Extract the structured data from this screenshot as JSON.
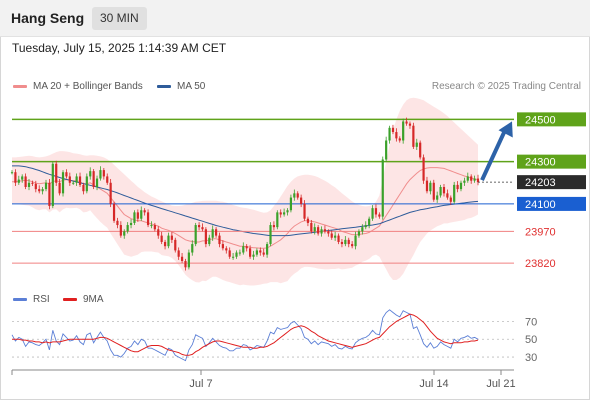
{
  "header": {
    "title": "Hang Seng",
    "timeframe": "30 MIN"
  },
  "datetime": "Tuesday, July 15, 2025 1:14:39 AM CET",
  "legend": {
    "ma20": {
      "label": "MA 20 + Bollinger Bands",
      "color": "#f08d8d"
    },
    "ma50": {
      "label": "MA 50",
      "color": "#2e5c9a"
    }
  },
  "credit": "Research © 2025 Trading Central",
  "rsi_legend": {
    "rsi": {
      "label": "RSI",
      "color": "#5b7fd6"
    },
    "ma9": {
      "label": "9MA",
      "color": "#e02020"
    }
  },
  "chart_data": [
    {
      "type": "candlestick",
      "x_labels": [
        "Jul 7",
        "Jul 14",
        "Jul 21"
      ],
      "ylim": [
        23740,
        24620
      ],
      "current_price": 24203,
      "current_price_label": "24203",
      "levels": [
        {
          "label": "24500",
          "value": 24500,
          "kind": "resistance"
        },
        {
          "label": "24300",
          "value": 24300,
          "kind": "resistance"
        },
        {
          "label": "24100",
          "value": 24100,
          "kind": "pivot"
        },
        {
          "label": "23970",
          "value": 23970,
          "kind": "support"
        },
        {
          "label": "23820",
          "value": 23820,
          "kind": "support"
        }
      ],
      "forecast_arrow": {
        "from": 24203,
        "to": 24500
      },
      "closes": [
        24250,
        24200,
        24215,
        24230,
        24180,
        24200,
        24195,
        24170,
        24160,
        24170,
        24200,
        24090,
        24290,
        24200,
        24150,
        24250,
        24230,
        24200,
        24200,
        24230,
        24190,
        24160,
        24230,
        24255,
        24180,
        24220,
        24260,
        24230,
        24200,
        24100,
        24020,
        24000,
        23950,
        23970,
        24000,
        24010,
        24060,
        24030,
        24070,
        24060,
        24000,
        24000,
        23980,
        23950,
        23920,
        23900,
        23950,
        23930,
        23880,
        23850,
        23830,
        23800,
        23870,
        23910,
        24000,
        23990,
        23980,
        23910,
        23940,
        23980,
        23950,
        23910,
        23890,
        23880,
        23850,
        23850,
        23870,
        23870,
        23900,
        23890,
        23850,
        23860,
        23880,
        23870,
        23860,
        23910,
        24000,
        23990,
        24060,
        24050,
        24060,
        24070,
        24130,
        24150,
        24130,
        24100,
        24030,
        24010,
        23970,
        23990,
        23960,
        23980,
        23970,
        23960,
        23940,
        23950,
        23920,
        23910,
        23930,
        23910,
        23900,
        23950,
        23970,
        23990,
        24000,
        24030,
        24080,
        24050,
        24040,
        24310,
        24400,
        24460,
        24440,
        24410,
        24400,
        24490,
        24480,
        24470,
        24370,
        24390,
        24320,
        24210,
        24160,
        24200,
        24120,
        24140,
        24180,
        24150,
        24130,
        24110,
        24190,
        24170,
        24200,
        24210,
        24230,
        24210,
        24220,
        24203
      ],
      "ma20": [
        24205,
        24205,
        24207,
        24210,
        24212,
        24210,
        24205,
        24198,
        24195,
        24198,
        24200,
        24195,
        24205,
        24210,
        24205,
        24212,
        24215,
        24212,
        24210,
        24210,
        24205,
        24195,
        24195,
        24200,
        24190,
        24180,
        24170,
        24160,
        24150,
        24130,
        24110,
        24090,
        24070,
        24050,
        24040,
        24030,
        24025,
        24020,
        24020,
        24015,
        24010,
        24005,
        24000,
        23995,
        23985,
        23980,
        23975,
        23968,
        23960,
        23950,
        23940,
        23930,
        23925,
        23922,
        23920,
        23920,
        23925,
        23925,
        23930,
        23935,
        23935,
        23930,
        23925,
        23920,
        23915,
        23910,
        23905,
        23900,
        23900,
        23898,
        23895,
        23893,
        23892,
        23890,
        23890,
        23892,
        23900,
        23910,
        23920,
        23930,
        23945,
        23960,
        23980,
        23995,
        24005,
        24015,
        24020,
        24020,
        24018,
        24015,
        24010,
        24005,
        24000,
        23995,
        23990,
        23985,
        23980,
        23970,
        23965,
        23960,
        23955,
        23955,
        23955,
        23958,
        23960,
        23965,
        23975,
        23985,
        23995,
        24020,
        24045,
        24070,
        24095,
        24120,
        24145,
        24170,
        24195,
        24215,
        24230,
        24245,
        24258,
        24265,
        24270,
        24272,
        24272,
        24272,
        24270,
        24268,
        24262,
        24256,
        24250,
        24244,
        24238,
        24232,
        24228,
        24222,
        24218,
        24215
      ],
      "ma50": [
        24280,
        24280,
        24280,
        24278,
        24276,
        24272,
        24268,
        24263,
        24258,
        24252,
        24246,
        24240,
        24235,
        24230,
        24225,
        24220,
        24216,
        24212,
        24208,
        24204,
        24200,
        24196,
        24192,
        24188,
        24184,
        24180,
        24176,
        24172,
        24168,
        24163,
        24158,
        24152,
        24146,
        24140,
        24134,
        24128,
        24122,
        24116,
        24110,
        24104,
        24098,
        24093,
        24088,
        24083,
        24078,
        24073,
        24068,
        24063,
        24058,
        24053,
        24048,
        24043,
        24038,
        24033,
        24028,
        24023,
        24018,
        24013,
        24008,
        24003,
        23998,
        23994,
        23990,
        23986,
        23982,
        23978,
        23975,
        23972,
        23969,
        23966,
        23963,
        23960,
        23958,
        23956,
        23954,
        23952,
        23950,
        23950,
        23950,
        23950,
        23950,
        23950,
        23952,
        23954,
        23956,
        23958,
        23960,
        23962,
        23964,
        23966,
        23968,
        23970,
        23972,
        23974,
        23976,
        23978,
        23980,
        23982,
        23984,
        23986,
        23988,
        23990,
        23992,
        23994,
        23996,
        23998,
        24000,
        24003,
        24006,
        24012,
        24018,
        24024,
        24030,
        24036,
        24042,
        24048,
        24054,
        24060,
        24064,
        24068,
        24072,
        24075,
        24078,
        24081,
        24084,
        24087,
        24090,
        24093,
        24095,
        24097,
        24099,
        24101,
        24103,
        24105,
        24107,
        24109,
        24111,
        24112
      ],
      "bb_upper": [
        24320,
        24320,
        24322,
        24324,
        24326,
        24328,
        24326,
        24322,
        24320,
        24322,
        24325,
        24330,
        24338,
        24345,
        24350,
        24350,
        24348,
        24345,
        24340,
        24338,
        24335,
        24330,
        24328,
        24330,
        24330,
        24328,
        24325,
        24320,
        24312,
        24300,
        24285,
        24270,
        24255,
        24240,
        24225,
        24210,
        24195,
        24180,
        24168,
        24155,
        24145,
        24135,
        24128,
        24120,
        24112,
        24105,
        24098,
        24092,
        24090,
        24090,
        24092,
        24096,
        24100,
        24105,
        24110,
        24112,
        24114,
        24115,
        24115,
        24115,
        24115,
        24112,
        24110,
        24106,
        24100,
        24095,
        24090,
        24085,
        24082,
        24080,
        24076,
        24072,
        24068,
        24062,
        24058,
        24060,
        24070,
        24090,
        24110,
        24135,
        24160,
        24185,
        24205,
        24220,
        24230,
        24235,
        24238,
        24238,
        24236,
        24232,
        24226,
        24218,
        24210,
        24200,
        24188,
        24178,
        24165,
        24150,
        24138,
        24125,
        24112,
        24102,
        24095,
        24090,
        24088,
        24090,
        24095,
        24110,
        24140,
        24220,
        24300,
        24380,
        24450,
        24500,
        24540,
        24570,
        24590,
        24600,
        24602,
        24600,
        24596,
        24590,
        24580,
        24570,
        24560,
        24550,
        24540,
        24528,
        24516,
        24500,
        24485,
        24470,
        24455,
        24440,
        24425,
        24410,
        24395,
        24380
      ],
      "bb_lower": [
        24100,
        24100,
        24098,
        24096,
        24094,
        24092,
        24084,
        24074,
        24070,
        24074,
        24075,
        24060,
        24072,
        24075,
        24060,
        24074,
        24082,
        24079,
        24080,
        24082,
        24075,
        24060,
        24062,
        24070,
        24050,
        24032,
        24015,
        24000,
        23988,
        23960,
        23935,
        23910,
        23885,
        23860,
        23855,
        23850,
        23855,
        23860,
        23872,
        23875,
        23875,
        23875,
        23872,
        23870,
        23858,
        23855,
        23852,
        23844,
        23830,
        23810,
        23788,
        23764,
        23750,
        23739,
        23730,
        23728,
        23736,
        23735,
        23745,
        23755,
        23755,
        23748,
        23740,
        23734,
        23730,
        23725,
        23720,
        23715,
        23718,
        23716,
        23714,
        23714,
        23716,
        23718,
        23722,
        23724,
        23730,
        23730,
        23730,
        23725,
        23730,
        23735,
        23755,
        23770,
        23780,
        23795,
        23802,
        23802,
        23800,
        23798,
        23794,
        23792,
        23790,
        23790,
        23792,
        23792,
        23795,
        23790,
        23792,
        23795,
        23798,
        23808,
        23815,
        23826,
        23832,
        23840,
        23855,
        23860,
        23850,
        23820,
        23790,
        23760,
        23740,
        23740,
        23750,
        23770,
        23800,
        23830,
        23858,
        23890,
        23920,
        23940,
        23960,
        23974,
        23984,
        23994,
        24000,
        24008,
        24008,
        24012,
        24015,
        24018,
        24021,
        24024,
        24031,
        24034,
        24041,
        24050
      ]
    },
    {
      "type": "line",
      "ylim": [
        20,
        85
      ],
      "ticks": [
        {
          "value": 70,
          "label": "70"
        },
        {
          "value": 50,
          "label": "50"
        },
        {
          "value": 30,
          "label": "30"
        }
      ],
      "rsi": [
        55,
        48,
        52,
        50,
        42,
        47,
        46,
        44,
        43,
        46,
        50,
        38,
        60,
        48,
        44,
        56,
        52,
        48,
        49,
        54,
        47,
        44,
        55,
        57,
        46,
        52,
        58,
        52,
        48,
        38,
        32,
        32,
        30,
        34,
        40,
        42,
        48,
        44,
        50,
        48,
        40,
        40,
        38,
        36,
        34,
        32,
        40,
        38,
        32,
        30,
        28,
        26,
        38,
        44,
        55,
        53,
        51,
        42,
        46,
        51,
        47,
        43,
        41,
        40,
        37,
        37,
        40,
        40,
        44,
        43,
        38,
        40,
        43,
        42,
        41,
        48,
        58,
        56,
        63,
        61,
        62,
        63,
        68,
        70,
        66,
        62,
        52,
        50,
        45,
        48,
        44,
        47,
        46,
        45,
        42,
        44,
        40,
        39,
        42,
        40,
        39,
        46,
        49,
        51,
        52,
        55,
        60,
        56,
        55,
        74,
        80,
        83,
        80,
        77,
        75,
        82,
        80,
        78,
        62,
        64,
        55,
        45,
        41,
        46,
        40,
        42,
        47,
        44,
        42,
        40,
        50,
        47,
        51,
        52,
        54,
        51,
        52,
        50
      ],
      "ma9": [
        50,
        50,
        50,
        49,
        49,
        48,
        48,
        47,
        47,
        46,
        47,
        46,
        47,
        47,
        47,
        48,
        49,
        50,
        50,
        50,
        50,
        50,
        50,
        50,
        50,
        51,
        52,
        52,
        51,
        49,
        47,
        45,
        43,
        41,
        39,
        37,
        36,
        36,
        38,
        40,
        42,
        43,
        43,
        43,
        42,
        40,
        38,
        37,
        36,
        35,
        33,
        32,
        32,
        33,
        36,
        38,
        41,
        43,
        45,
        47,
        48,
        48,
        47,
        46,
        45,
        44,
        43,
        42,
        41,
        41,
        41,
        40,
        40,
        41,
        41,
        42,
        44,
        46,
        49,
        52,
        55,
        58,
        61,
        63,
        64,
        65,
        64,
        62,
        59,
        57,
        54,
        52,
        50,
        48,
        47,
        46,
        45,
        44,
        43,
        42,
        41,
        42,
        43,
        44,
        45,
        47,
        49,
        51,
        52,
        56,
        60,
        64,
        67,
        70,
        72,
        74,
        76,
        78,
        77,
        75,
        72,
        69,
        64,
        59,
        55,
        51,
        49,
        47,
        46,
        45,
        46,
        46,
        46,
        47,
        47,
        48,
        48,
        49
      ]
    }
  ]
}
